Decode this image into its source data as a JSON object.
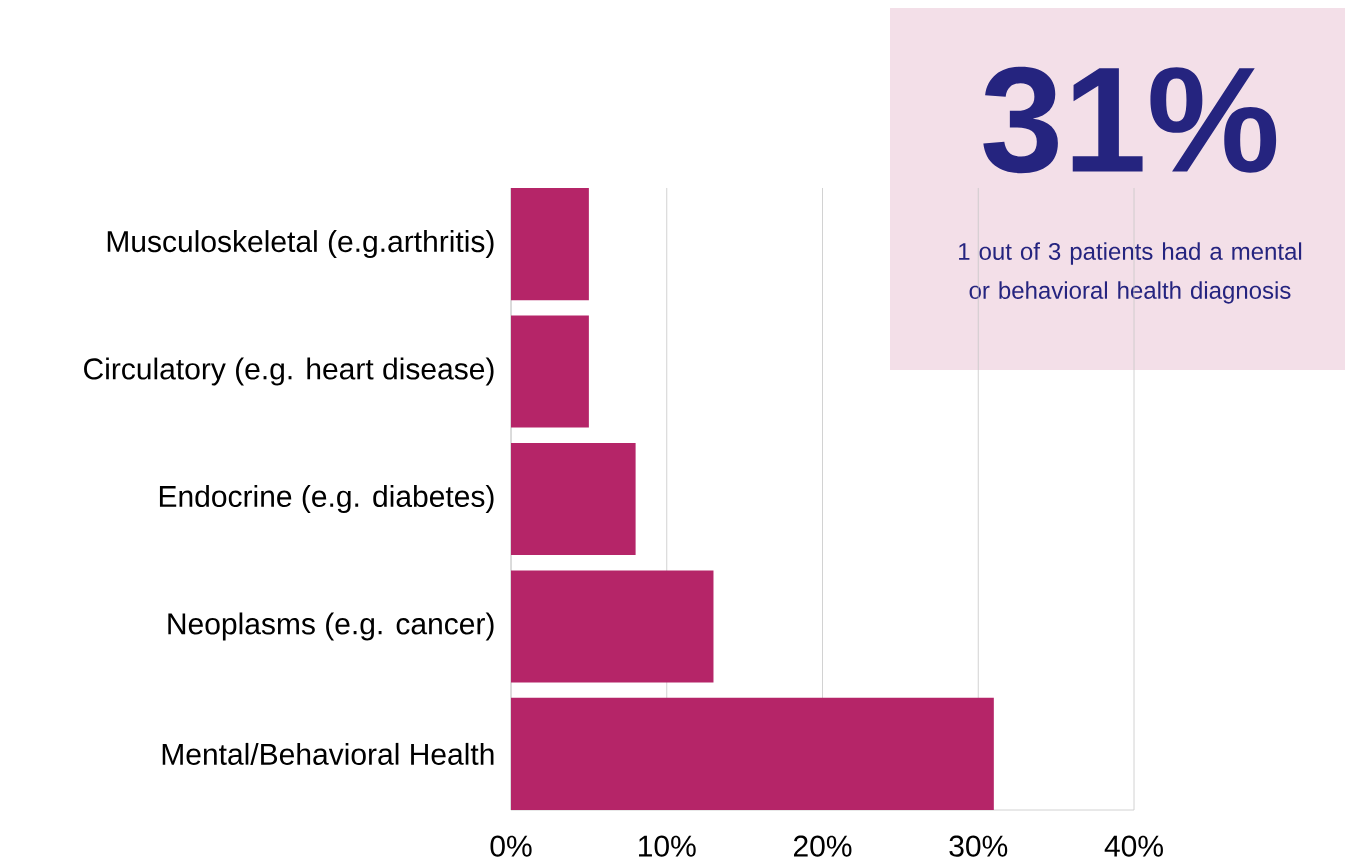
{
  "chart_data": {
    "type": "bar",
    "orientation": "horizontal",
    "categories": [
      "Musculoskeletal (e.g.arthritis)",
      "Circulatory (e.g. heart disease)",
      "Endocrine (e.g. diabetes)",
      "Neoplasms (e.g. cancer)",
      "Mental/Behavioral Health"
    ],
    "values": [
      5,
      5,
      8,
      13,
      31
    ],
    "color": "#b52568",
    "xlim": [
      0,
      40
    ],
    "xticks": [
      {
        "value": 0,
        "label": "0%"
      },
      {
        "value": 10,
        "label": "10%"
      },
      {
        "value": 20,
        "label": "20%"
      },
      {
        "value": 30,
        "label": "30%"
      },
      {
        "value": 40,
        "label": "40%"
      }
    ],
    "grid": "x",
    "annotations": [
      "31%",
      "1 out of 3 patients had a mental or behavioral health diagnosis"
    ]
  }
}
